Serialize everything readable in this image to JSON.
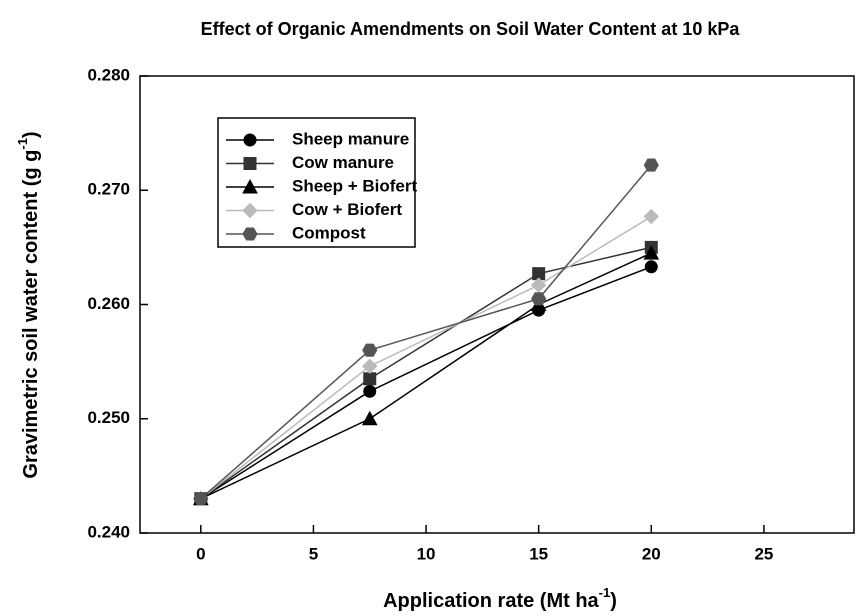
{
  "chart_data": {
    "type": "line",
    "title": "Effect of Organic Amendments on Soil Water Content at 10 kPa",
    "xlabel": {
      "text": "Application rate (Mt ha",
      "sup": "-1",
      "end": ")"
    },
    "ylabel": {
      "text": "Gravimetric soil water content (g g",
      "sup": "-1",
      "end": ")"
    },
    "x": [
      0,
      7.5,
      15,
      20
    ],
    "xlim": [
      -2.7,
      29
    ],
    "xticks": [
      0,
      5,
      10,
      15,
      20,
      25
    ],
    "ylim": [
      0.24,
      0.28
    ],
    "yticks": [
      {
        "value": 0.24,
        "label": "0.240"
      },
      {
        "value": 0.25,
        "label": "0.250"
      },
      {
        "value": 0.26,
        "label": "0.260"
      },
      {
        "value": 0.27,
        "label": "0.270"
      },
      {
        "value": 0.28,
        "label": "0.280"
      }
    ],
    "series": [
      {
        "name": "Sheep manure",
        "color": "#000000",
        "marker": "circle",
        "values": [
          0.243,
          0.2524,
          0.2595,
          0.2633
        ]
      },
      {
        "name": "Cow manure",
        "color": "#333333",
        "marker": "square",
        "values": [
          0.243,
          0.2535,
          0.2627,
          0.265
        ]
      },
      {
        "name": "Sheep + Biofert",
        "color": "#000000",
        "marker": "triangle",
        "values": [
          0.243,
          0.25,
          0.26,
          0.2645
        ]
      },
      {
        "name": "Cow + Biofert",
        "color": "#bbbbbb",
        "marker": "diamond",
        "values": [
          0.243,
          0.2546,
          0.2617,
          0.2677
        ]
      },
      {
        "name": "Compost",
        "color": "#555555",
        "marker": "hexagon",
        "values": [
          0.243,
          0.256,
          0.2605,
          0.2722
        ]
      }
    ]
  }
}
